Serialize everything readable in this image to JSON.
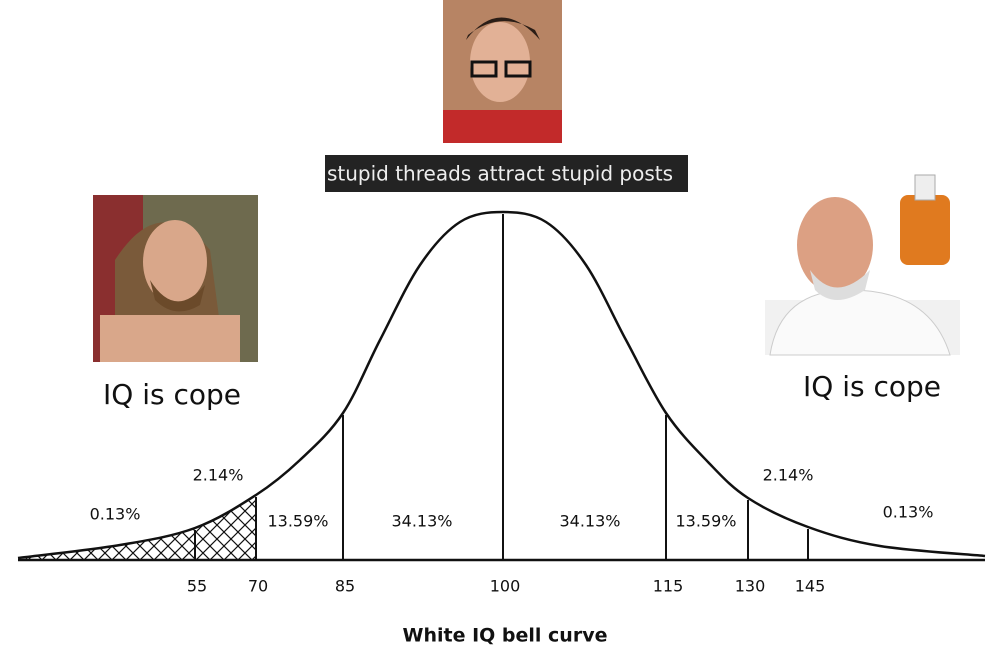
{
  "banner": "stupid threads attract stupid posts",
  "left_caption": "IQ is cope",
  "right_caption": "IQ is cope",
  "curve": {
    "title": "White IQ bell curve",
    "ticks": [
      "55",
      "70",
      "85",
      "100",
      "115",
      "130",
      "145"
    ],
    "segments": [
      "0.13%",
      "2.14%",
      "13.59%",
      "34.13%",
      "34.13%",
      "13.59%",
      "2.14%",
      "0.13%"
    ]
  }
}
